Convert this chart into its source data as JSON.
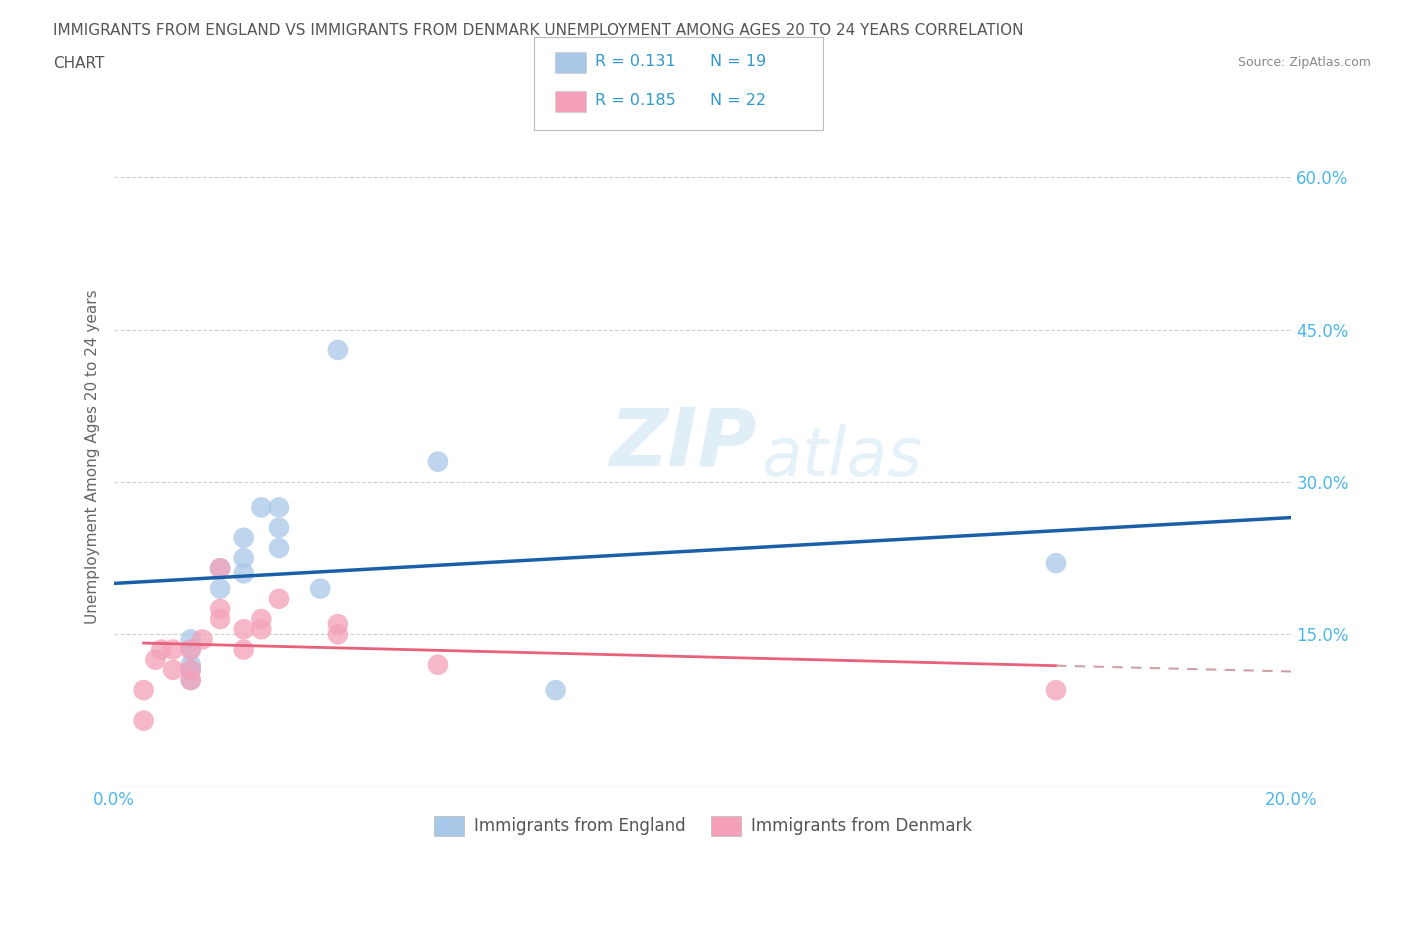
{
  "title_line1": "IMMIGRANTS FROM ENGLAND VS IMMIGRANTS FROM DENMARK UNEMPLOYMENT AMONG AGES 20 TO 24 YEARS CORRELATION",
  "title_line2": "CHART",
  "source_text": "Source: ZipAtlas.com",
  "ylabel": "Unemployment Among Ages 20 to 24 years",
  "xlim": [
    0.0,
    0.2
  ],
  "ylim": [
    0.0,
    0.65
  ],
  "xticks": [
    0.0,
    0.05,
    0.1,
    0.15,
    0.2
  ],
  "xticklabels": [
    "0.0%",
    "",
    "",
    "",
    "20.0%"
  ],
  "yticks": [
    0.0,
    0.15,
    0.3,
    0.45,
    0.6
  ],
  "yticklabels": [
    "",
    "15.0%",
    "30.0%",
    "45.0%",
    "60.0%"
  ],
  "england_color": "#a8c8e8",
  "denmark_color": "#f4a0b8",
  "england_line_color": "#1a5fa8",
  "denmark_line_color": "#e8607a",
  "denmark_dash_color": "#d0a0a8",
  "england_R": 0.131,
  "england_N": 19,
  "denmark_R": 0.185,
  "denmark_N": 22,
  "watermark_top": "ZIP",
  "watermark_bot": "atlas",
  "england_x": [
    0.013,
    0.013,
    0.013,
    0.013,
    0.013,
    0.018,
    0.018,
    0.022,
    0.022,
    0.022,
    0.025,
    0.028,
    0.028,
    0.028,
    0.035,
    0.038,
    0.055,
    0.075,
    0.16
  ],
  "england_y": [
    0.105,
    0.115,
    0.12,
    0.135,
    0.145,
    0.215,
    0.195,
    0.245,
    0.225,
    0.21,
    0.275,
    0.275,
    0.255,
    0.235,
    0.195,
    0.43,
    0.32,
    0.095,
    0.22
  ],
  "denmark_x": [
    0.005,
    0.005,
    0.007,
    0.008,
    0.01,
    0.01,
    0.013,
    0.013,
    0.013,
    0.015,
    0.018,
    0.018,
    0.018,
    0.022,
    0.022,
    0.025,
    0.025,
    0.028,
    0.038,
    0.038,
    0.055,
    0.16
  ],
  "denmark_y": [
    0.065,
    0.095,
    0.125,
    0.135,
    0.115,
    0.135,
    0.105,
    0.115,
    0.135,
    0.145,
    0.165,
    0.175,
    0.215,
    0.135,
    0.155,
    0.155,
    0.165,
    0.185,
    0.15,
    0.16,
    0.12,
    0.095
  ],
  "background_color": "#ffffff",
  "grid_color": "#d0d0d0",
  "tick_color": "#4db8e8",
  "label_color": "#666666"
}
